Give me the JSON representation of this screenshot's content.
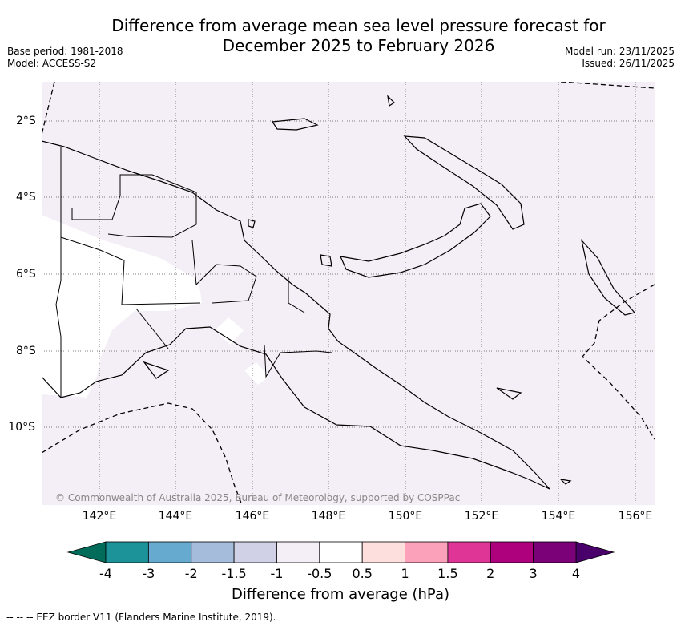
{
  "title_line1": "Difference from average mean sea level pressure forecast for",
  "title_line2": "December 2025 to February 2026",
  "base_period": "Base period: 1981-2018",
  "model": "Model: ACCESS-S2",
  "model_run": "Model run: 23/11/2025",
  "issued": "Issued: 26/11/2025",
  "map": {
    "lat_labels": [
      "2°S",
      "4°S",
      "6°S",
      "8°S",
      "10°S"
    ],
    "lon_labels": [
      "142°E",
      "144°E",
      "146°E",
      "148°E",
      "150°E",
      "152°E",
      "154°E",
      "156°E"
    ],
    "background_color": "#f4eef6",
    "copyright": "© Commonwealth of Australia 2025, Bureau of Meteorology, supported by COSPPac"
  },
  "colorbar": {
    "ticks": [
      "-4",
      "-3",
      "-2",
      "-1.5",
      "-1",
      "-0.5",
      "0.5",
      "1",
      "1.5",
      "2",
      "3",
      "4"
    ],
    "colors": [
      "#1b9399",
      "#67aad0",
      "#a6bcdb",
      "#d0d1e6",
      "#f4eef6",
      "#ffffff",
      "#fde0de",
      "#fba1b9",
      "#de3597",
      "#ad017e",
      "#7a0177"
    ],
    "under_color": "#016c59",
    "over_color": "#49006a",
    "label": "Difference from average (hPa)"
  },
  "legend_footer": "--  --  -- EEZ border V11 (Flanders Marine Institute, 2019)."
}
